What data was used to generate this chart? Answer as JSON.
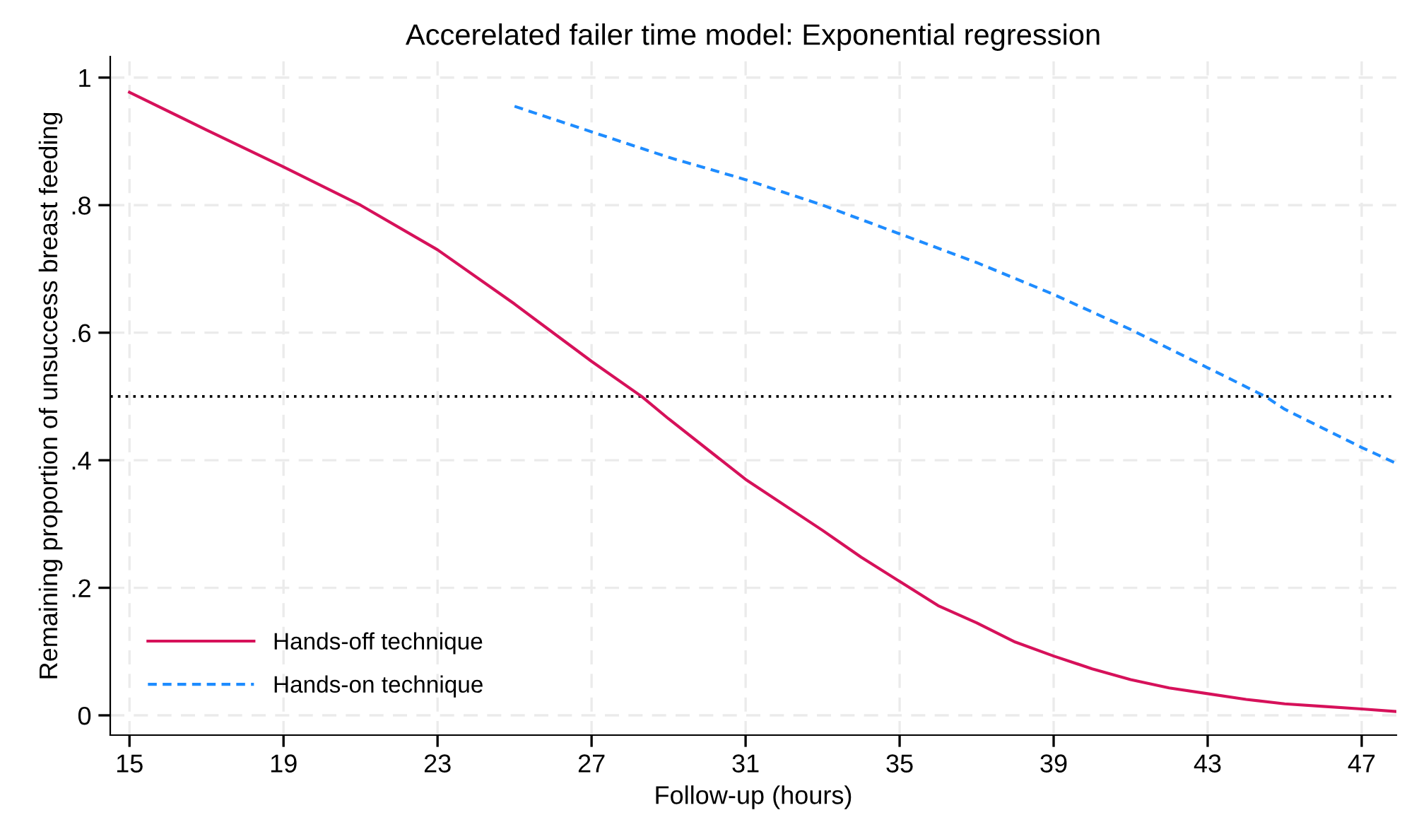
{
  "chart_data": {
    "type": "line",
    "title": "Accerelated failer time model: Exponential regression",
    "xlabel": "Follow-up (hours)",
    "ylabel": "Remaining proportion of unsuccess breast feeding",
    "series": [
      {
        "name": "Hands-off technique",
        "color": "#d6115a",
        "line_style": "solid",
        "x": [
          15,
          17,
          19,
          21,
          23,
          25,
          27,
          28.3,
          29,
          31,
          33,
          34,
          35,
          36,
          37,
          38,
          39,
          40,
          41,
          42,
          43,
          44,
          45,
          46,
          47,
          47.9
        ],
        "values": [
          0.977,
          0.918,
          0.86,
          0.8,
          0.73,
          0.645,
          0.555,
          0.5,
          0.465,
          0.37,
          0.29,
          0.248,
          0.21,
          0.172,
          0.145,
          0.115,
          0.093,
          0.073,
          0.056,
          0.043,
          0.034,
          0.025,
          0.018,
          0.014,
          0.01,
          0.006
        ]
      },
      {
        "name": "Hands-on technique",
        "color": "#1e8cff",
        "line_style": "dashed",
        "x": [
          25,
          27,
          29,
          31,
          33,
          35,
          37,
          39,
          41,
          43,
          44.5,
          45,
          47,
          47.9
        ],
        "values": [
          0.955,
          0.915,
          0.875,
          0.84,
          0.8,
          0.755,
          0.71,
          0.66,
          0.605,
          0.545,
          0.5,
          0.48,
          0.42,
          0.395
        ]
      }
    ],
    "ref_lines": [
      {
        "axis": "y",
        "value": 0.5,
        "color": "#000000",
        "line_style": "dotted"
      }
    ],
    "xlim": [
      14.5,
      47.9
    ],
    "xticks": [
      15,
      19,
      23,
      27,
      31,
      35,
      39,
      43,
      47
    ],
    "ylim": [
      -0.031,
      1.033
    ],
    "yticks": [
      {
        "value": 0,
        "label": "0"
      },
      {
        "value": 0.2,
        "label": ".2"
      },
      {
        "value": 0.4,
        "label": ".4"
      },
      {
        "value": 0.6,
        "label": ".6"
      },
      {
        "value": 0.8,
        "label": ".8"
      },
      {
        "value": 1,
        "label": "1"
      }
    ],
    "grid": true,
    "legend": "bottom left",
    "marker": "none"
  }
}
